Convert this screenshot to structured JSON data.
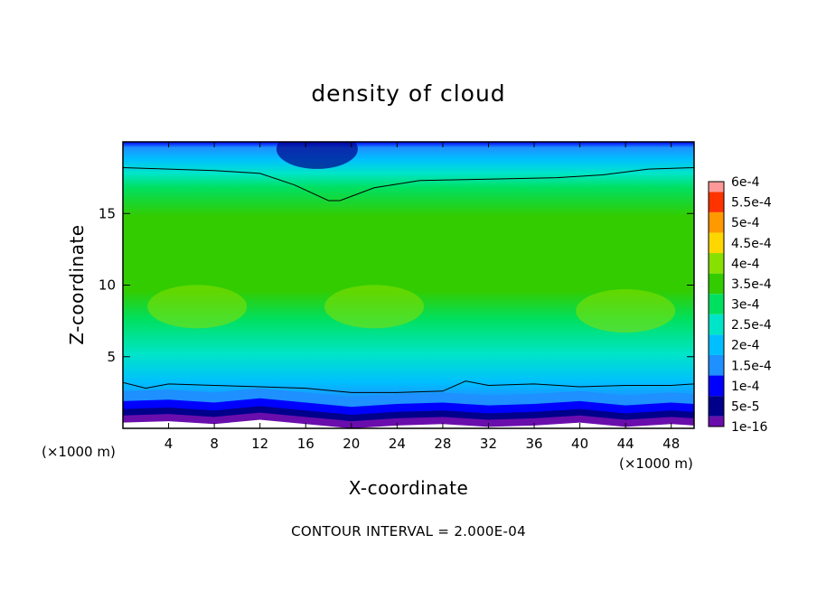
{
  "chart_data": {
    "type": "heatmap",
    "title": "density of cloud",
    "xlabel": "X-coordinate",
    "ylabel": "Z-coordinate",
    "x_unit": "(×1000 m)",
    "xlim": [
      0,
      50
    ],
    "ylim": [
      0,
      20
    ],
    "x_ticks": [
      4,
      8,
      12,
      16,
      20,
      24,
      28,
      32,
      36,
      40,
      44,
      48
    ],
    "y_ticks": [
      5,
      10,
      15
    ],
    "note": "CONTOUR INTERVAL = 2.000E-04",
    "contour_levels": [
      0.0001,
      0.0003
    ],
    "colorbar": {
      "labels": [
        "1e-16",
        "5e-5",
        "1e-4",
        "1.5e-4",
        "2e-4",
        "2.5e-4",
        "3e-4",
        "3.5e-4",
        "4e-4",
        "4.5e-4",
        "5e-4",
        "5.5e-4",
        "6e-4"
      ],
      "values": [
        1e-16,
        5e-05,
        0.0001,
        0.00015,
        0.0002,
        0.00025,
        0.0003,
        0.00035,
        0.0004,
        0.00045,
        0.0005,
        0.00055,
        0.0006
      ],
      "colors": [
        "#6a0dad",
        "#00008b",
        "#0000ff",
        "#1e90ff",
        "#00bfff",
        "#00e5c8",
        "#00e060",
        "#33cc00",
        "#88e000",
        "#ffd700",
        "#ff9900",
        "#ff3300",
        "#ff9999"
      ]
    },
    "surface_profile_z": [
      [
        0,
        1.0
      ],
      [
        4,
        1.1
      ],
      [
        8,
        0.9
      ],
      [
        12,
        1.2
      ],
      [
        16,
        0.9
      ],
      [
        20,
        0.6
      ],
      [
        24,
        0.8
      ],
      [
        28,
        0.9
      ],
      [
        32,
        0.7
      ],
      [
        36,
        0.8
      ],
      [
        40,
        1.0
      ],
      [
        44,
        0.7
      ],
      [
        48,
        0.9
      ],
      [
        50,
        0.8
      ]
    ],
    "contour_lower_z": [
      [
        0,
        3.2
      ],
      [
        2,
        2.8
      ],
      [
        4,
        3.1
      ],
      [
        8,
        3.0
      ],
      [
        12,
        2.9
      ],
      [
        16,
        2.8
      ],
      [
        20,
        2.5
      ],
      [
        24,
        2.5
      ],
      [
        28,
        2.6
      ],
      [
        30,
        3.3
      ],
      [
        32,
        3.0
      ],
      [
        36,
        3.1
      ],
      [
        40,
        2.9
      ],
      [
        44,
        3.0
      ],
      [
        48,
        3.0
      ],
      [
        50,
        3.1
      ]
    ],
    "contour_upper_z": [
      [
        0,
        18.2
      ],
      [
        4,
        18.1
      ],
      [
        8,
        18.0
      ],
      [
        12,
        17.8
      ],
      [
        15,
        17.0
      ],
      [
        18,
        15.9
      ],
      [
        19,
        15.9
      ],
      [
        22,
        16.8
      ],
      [
        26,
        17.3
      ],
      [
        32,
        17.4
      ],
      [
        38,
        17.5
      ],
      [
        42,
        17.7
      ],
      [
        46,
        18.1
      ],
      [
        50,
        18.2
      ]
    ],
    "high_density_cores": [
      {
        "x": 6.5,
        "z": 8.5,
        "density": 0.00036
      },
      {
        "x": 22,
        "z": 8.5,
        "density": 0.00038
      },
      {
        "x": 44,
        "z": 8.2,
        "density": 0.00034
      }
    ],
    "low_density_top": {
      "x": 17,
      "z": 19.5,
      "density": 5e-05
    }
  }
}
